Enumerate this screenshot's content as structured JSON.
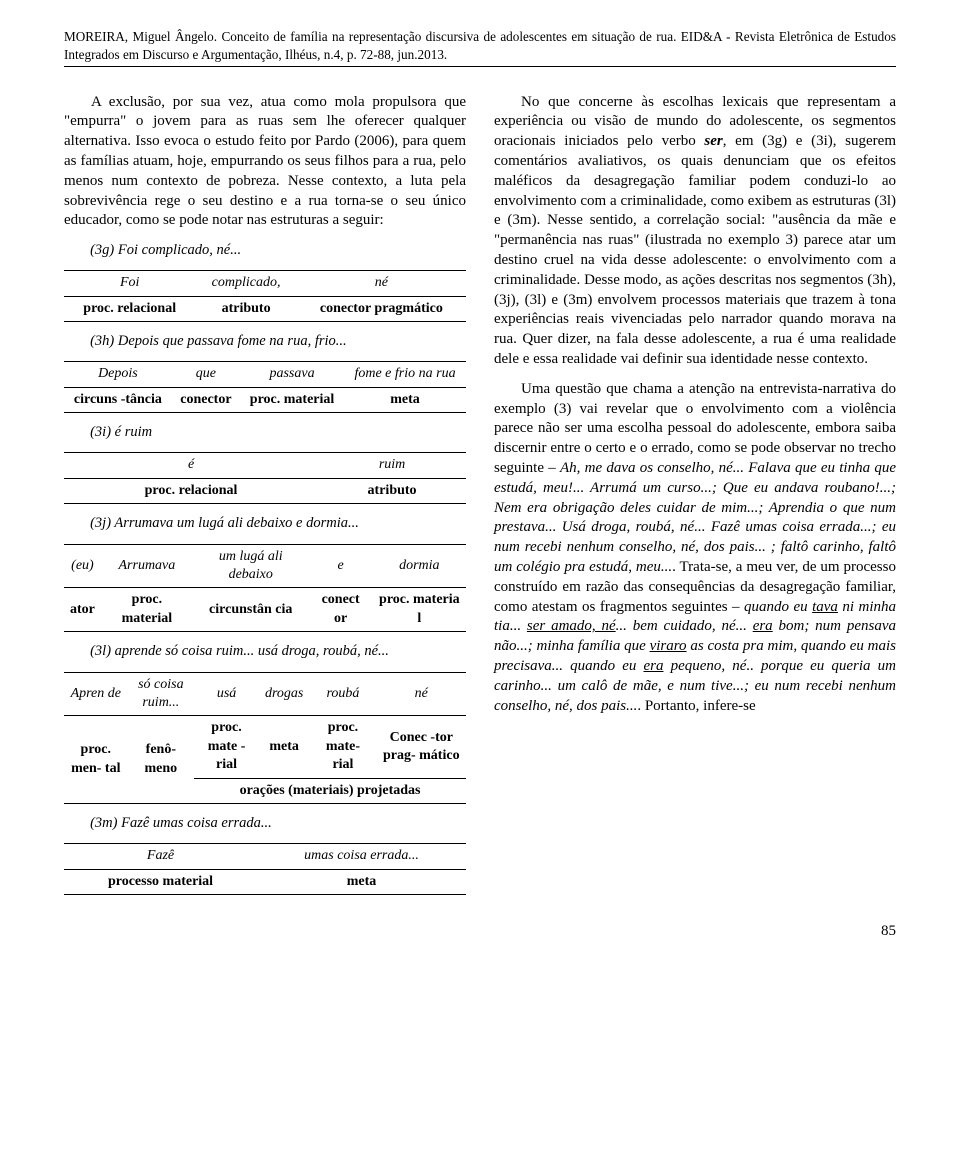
{
  "header": {
    "line1": "MOREIRA, Miguel Ângelo. Conceito de família na representação discursiva de adolescentes em situação de rua. EID&A - Revista Eletrônica de Estudos Integrados em Discurso e Argumentação, Ilhéus, n.4, p. 72-88, jun.2013."
  },
  "left": {
    "para1": "A exclusão, por sua vez, atua como mola propulsora que \"empurra\" o jovem para as ruas sem lhe oferecer qualquer alternativa. Isso evoca o estudo feito por Pardo (2006), para quem as famílias atuam, hoje, empurrando os seus filhos para a rua, pelo menos num contexto de pobreza. Nesse contexto, a luta pela sobrevivência rege o seu destino e a rua torna-se o seu único educador, como se pode notar nas estruturas a seguir:",
    "t3g": {
      "caption": "(3g) Foi complicado, né...",
      "r1": [
        "Foi",
        "complicado,",
        "né"
      ],
      "r2": [
        "proc. relacional",
        "atributo",
        "conector pragmático"
      ]
    },
    "t3h": {
      "caption": "(3h) Depois que passava fome na rua, frio...",
      "r1": [
        "Depois",
        "que",
        "passava",
        "fome e frio na rua"
      ],
      "r2": [
        "circuns -tância",
        "conector",
        "proc. material",
        "meta"
      ]
    },
    "t3i": {
      "caption": "(3i) é ruim",
      "r1": [
        "é",
        "ruim"
      ],
      "r2": [
        "proc. relacional",
        "atributo"
      ]
    },
    "t3j": {
      "caption": "(3j) Arrumava um lugá ali debaixo e dormia...",
      "r1": [
        "(eu)",
        "Arrumava",
        "um lugá ali debaixo",
        "e",
        "dormia"
      ],
      "r2": [
        "ator",
        "proc. material",
        "circunstân cia",
        "conect or",
        "proc. materia l"
      ]
    },
    "t3l": {
      "caption": "(3l) aprende só coisa ruim... usá  droga, roubá, né...",
      "r1": [
        "Apren de",
        "só coisa ruim...",
        "usá",
        "drogas",
        "roubá",
        "né"
      ],
      "r2": [
        "proc. men- tal",
        "fenô- meno",
        "proc. mate -rial",
        "meta",
        "proc. mate- rial",
        "Conec -tor prag- mático"
      ],
      "r3": "orações (materiais) projetadas"
    },
    "t3m": {
      "caption": "(3m) Fazê umas coisa errada...",
      "r1": [
        "Fazê",
        "umas coisa errada..."
      ],
      "r2": [
        "processo material",
        "meta"
      ]
    }
  },
  "right": {
    "para1a": "No que concerne às escolhas lexicais que representam a experiência ou visão de mundo do adolescente, os segmentos oracionais iniciados pelo verbo ",
    "ser": "ser",
    "para1b": ", em (3g) e (3i), sugerem comentários avaliativos, os quais denunciam que os efeitos maléficos da desagregação familiar podem conduzi-lo ao envolvimento com a criminalidade, como exibem as estruturas (3l) e (3m). Nesse sentido, a correlação social: \"ausência da mãe e \"permanência nas ruas\" (ilustrada no exemplo 3) parece atar um destino cruel na vida desse adolescente: o envolvimento com a criminalidade. Desse modo, as ações descritas nos segmentos (3h), (3j), (3l) e (3m) envolvem processos materiais que trazem à tona experiências reais vivenciadas pelo narrador quando morava na rua. Quer dizer, na fala desse adolescente, a rua é uma realidade dele e essa realidade vai definir sua identidade nesse contexto.",
    "para2a": "Uma questão que chama a atenção na entrevista-narrativa do exemplo (3) vai revelar que o envolvimento com a violência parece não ser uma escolha pessoal do adolescente, embora saiba discernir entre o certo e o errado, como se pode observar no trecho seguinte – ",
    "quote1": "Ah, me dava os conselho, né... Falava que eu tinha que estudá, meu!... Arrumá um curso...; Que eu andava roubano!...; Nem era obrigação deles cuidar de mim...; Aprendia o que num prestava... Usá droga, roubá, né... Fazê umas coisa  errada...; eu num recebi nenhum conselho, né,  dos pais... ; faltô carinho, faltô um colégio pra estudá, meu...",
    "para2b": ". Trata-se, a meu ver, de um processo construído em razão das consequências da desagregação familiar, como atestam os fragmentos seguintes – ",
    "frag1a": "quando eu ",
    "tava": "tava",
    "frag1b": " ni minha tia... ",
    "seramado": "ser amado, né",
    "frag1c": "... bem cuidado, né... ",
    "era1": "era",
    "frag1d": " bom; num pensava não...; minha família que ",
    "viraro": "viraro",
    "frag1e": " as costa pra mim, quando eu mais precisava... quando eu ",
    "era2": "era",
    "frag1f": " pequeno, né.. porque eu queria um carinho... um calô de mãe, e num tive...; eu num recebi nenhum conselho, né,  dos pais...",
    "para2c": ". Portanto, infere-se"
  },
  "pagenum": "85"
}
